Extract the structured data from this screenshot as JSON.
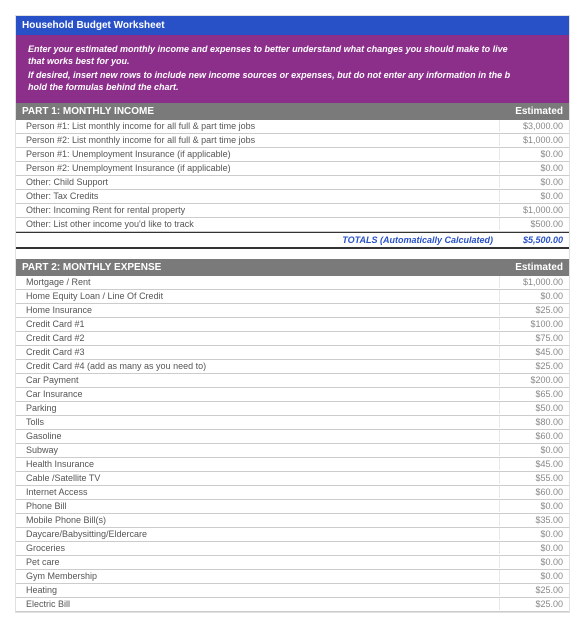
{
  "colors": {
    "title_bg": "#2851c8",
    "instructions_bg": "#8b2f8b",
    "section_header_bg": "#7a7a7a",
    "totals_text": "#2851c8",
    "row_border": "#cccccc",
    "amount_text": "#888888",
    "label_text": "#555555"
  },
  "title": "Household Budget Worksheet",
  "instructions": {
    "line1": "Enter your estimated monthly income and expenses to better understand what changes you should make to live",
    "line1b": "that works best for you.",
    "line2": "If desired, insert new rows to include new income sources or expenses, but do not enter any information in the b",
    "line2b": "hold the formulas behind the chart."
  },
  "part1": {
    "header": "PART 1: MONTHLY INCOME",
    "est_header": "Estimated",
    "rows": [
      {
        "label": "Person #1: List monthly income for all full & part time jobs",
        "amount": "$3,000.00"
      },
      {
        "label": "Person #2: List monthly income for all full & part time jobs",
        "amount": "$1,000.00"
      },
      {
        "label": "Person #1: Unemployment Insurance (if applicable)",
        "amount": "$0.00"
      },
      {
        "label": "Person #2: Unemployment Insurance (if applicable)",
        "amount": "$0.00"
      },
      {
        "label": "Other: Child Support",
        "amount": "$0.00"
      },
      {
        "label": "Other: Tax Credits",
        "amount": "$0.00"
      },
      {
        "label": "Other: Incoming Rent for rental property",
        "amount": "$1,000.00"
      },
      {
        "label": "Other: List other income you'd like to track",
        "amount": "$500.00"
      }
    ],
    "totals_label": "TOTALS (Automatically Calculated)",
    "totals_amount": "$5,500.00"
  },
  "part2": {
    "header": "PART 2: MONTHLY EXPENSE",
    "est_header": "Estimated",
    "rows": [
      {
        "label": "Mortgage / Rent",
        "amount": "$1,000.00"
      },
      {
        "label": "Home Equity Loan / Line Of Credit",
        "amount": "$0.00"
      },
      {
        "label": "Home Insurance",
        "amount": "$25.00"
      },
      {
        "label": "Credit Card #1",
        "amount": "$100.00"
      },
      {
        "label": "Credit Card #2",
        "amount": "$75.00"
      },
      {
        "label": "Credit Card #3",
        "amount": "$45.00"
      },
      {
        "label": "Credit Card #4 (add as many as you need to)",
        "amount": "$25.00"
      },
      {
        "label": "Car Payment",
        "amount": "$200.00"
      },
      {
        "label": "Car Insurance",
        "amount": "$65.00"
      },
      {
        "label": "Parking",
        "amount": "$50.00"
      },
      {
        "label": "Tolls",
        "amount": "$80.00"
      },
      {
        "label": "Gasoline",
        "amount": "$60.00"
      },
      {
        "label": "Subway",
        "amount": "$0.00"
      },
      {
        "label": "Health Insurance",
        "amount": "$45.00"
      },
      {
        "label": "Cable /Satellite TV",
        "amount": "$55.00"
      },
      {
        "label": "Internet Access",
        "amount": "$60.00"
      },
      {
        "label": "Phone Bill",
        "amount": "$0.00"
      },
      {
        "label": "Mobile Phone Bill(s)",
        "amount": "$35.00"
      },
      {
        "label": "Daycare/Babysitting/Eldercare",
        "amount": "$0.00"
      },
      {
        "label": "Groceries",
        "amount": "$0.00"
      },
      {
        "label": "Pet care",
        "amount": "$0.00"
      },
      {
        "label": "Gym Membership",
        "amount": "$0.00"
      },
      {
        "label": "Heating",
        "amount": "$25.00"
      },
      {
        "label": "Electric Bill",
        "amount": "$25.00"
      }
    ]
  }
}
